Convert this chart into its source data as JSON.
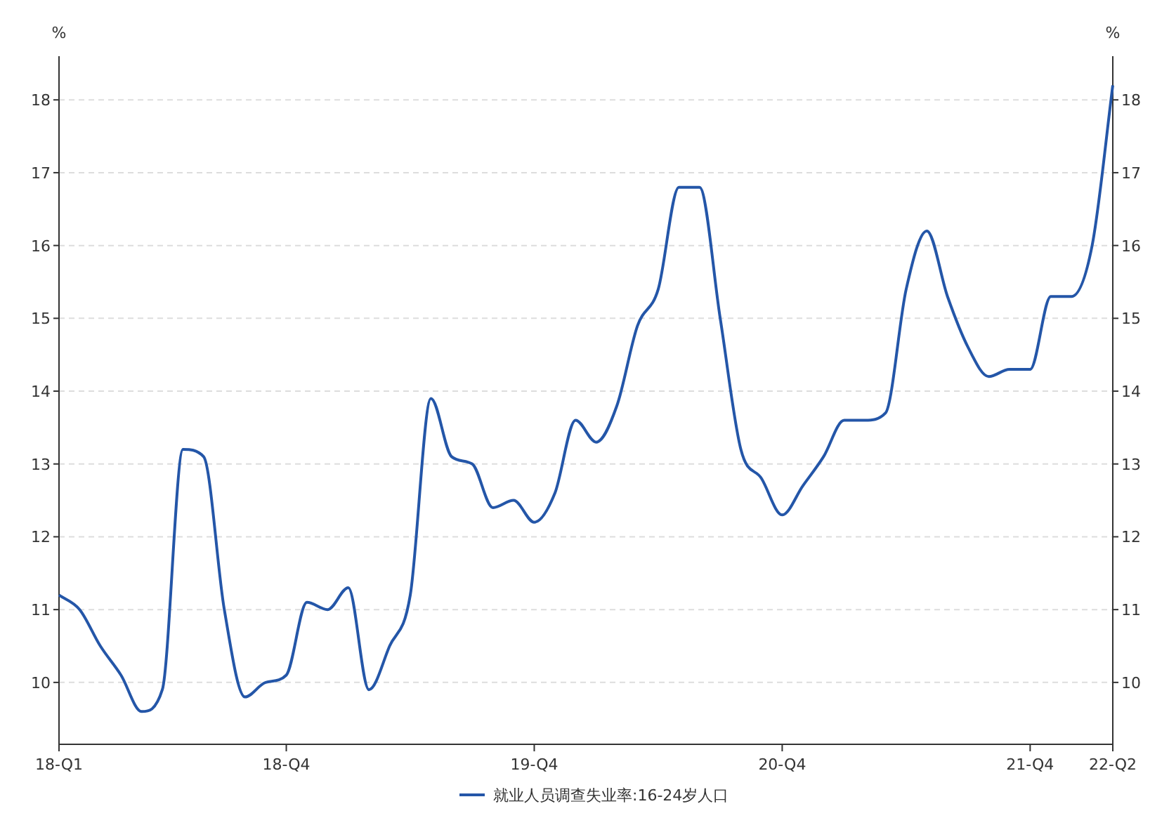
{
  "chart_data": {
    "type": "line",
    "ylabel": "%",
    "y2label": "%",
    "categories": [
      "18-Q1",
      null,
      null,
      null,
      null,
      null,
      null,
      null,
      null,
      null,
      null,
      "18-Q4",
      null,
      null,
      null,
      null,
      null,
      null,
      null,
      null,
      null,
      null,
      null,
      "19-Q4",
      null,
      null,
      null,
      null,
      null,
      null,
      null,
      null,
      null,
      null,
      null,
      "20-Q4",
      null,
      null,
      null,
      null,
      null,
      null,
      null,
      null,
      null,
      null,
      null,
      "21-Q4",
      null,
      null,
      null,
      "22-Q2"
    ],
    "series": [
      {
        "name": "就业人员调查失业率:16-24岁人口",
        "color": "#2456a8",
        "values": [
          11.2,
          11.0,
          10.5,
          10.1,
          9.6,
          9.9,
          13.2,
          13.1,
          11.0,
          9.8,
          10.0,
          10.1,
          11.1,
          11.0,
          11.3,
          9.9,
          10.5,
          11.2,
          13.9,
          13.1,
          13.0,
          12.4,
          12.5,
          12.2,
          12.6,
          13.6,
          13.3,
          13.8,
          14.9,
          15.4,
          16.8,
          16.8,
          15.0,
          13.2,
          12.8,
          12.3,
          12.7,
          13.1,
          13.6,
          13.6,
          13.7,
          15.4,
          16.2,
          15.3,
          14.6,
          14.2,
          14.3,
          14.3,
          15.3,
          15.3,
          16.0,
          18.2
        ]
      }
    ],
    "ylim": [
      9.15,
      18.6
    ],
    "yticks": [
      10,
      11,
      12,
      13,
      14,
      15,
      16,
      17,
      18
    ],
    "y2lim": [
      9.15,
      18.6
    ],
    "y2ticks": [
      10,
      11,
      12,
      13,
      14,
      15,
      16,
      17,
      18
    ],
    "grid": "y",
    "legend": "bottom",
    "marker": "none",
    "line_style": "solid"
  }
}
